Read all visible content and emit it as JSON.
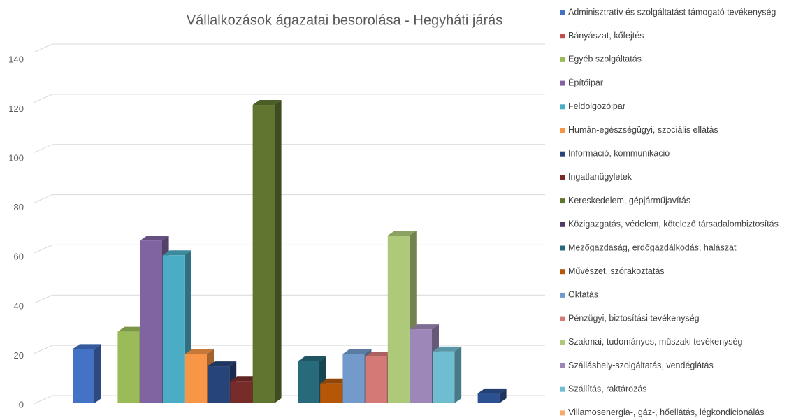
{
  "chart_data": {
    "type": "bar3d",
    "title": "Vállalkozások ágazatai besorolása - Hegyháti járás",
    "categories": [
      null
    ],
    "ylim": [
      0,
      140
    ],
    "yticks": [
      0,
      20,
      40,
      60,
      80,
      100,
      120,
      140
    ],
    "grid": true,
    "legend": "right",
    "series": [
      {
        "name": "Adminisztratív és szolgáltatást támogató tevékenység",
        "color": "#4472c4",
        "values": [
          22
        ]
      },
      {
        "name": "Bányászat, kőfejtés",
        "color": "#c0504d",
        "values": [
          0
        ]
      },
      {
        "name": "Egyéb szolgáltatás",
        "color": "#9bbb59",
        "values": [
          29
        ]
      },
      {
        "name": "Építőipar",
        "color": "#8064a2",
        "values": [
          66
        ]
      },
      {
        "name": "Feldolgozóipar",
        "color": "#4bacc6",
        "values": [
          60
        ]
      },
      {
        "name": "Humán-egészségügyi, szociális ellátás",
        "color": "#f79646",
        "values": [
          20
        ]
      },
      {
        "name": "Információ, kommunikáció",
        "color": "#264478",
        "values": [
          15
        ]
      },
      {
        "name": "Ingatlanügyletek",
        "color": "#772c2a",
        "values": [
          9
        ]
      },
      {
        "name": "Kereskedelem, gépjárműjavítás",
        "color": "#5f7530",
        "values": [
          121
        ]
      },
      {
        "name": "Közigazgatás, védelem, kötelező társadalombiztosítás",
        "color": "#4d3b62",
        "values": [
          0
        ]
      },
      {
        "name": "Mezőgazdaság, erdőgazdálkodás, halászat",
        "color": "#276a7c",
        "values": [
          17
        ]
      },
      {
        "name": "Művészet, szórakoztatás",
        "color": "#b65708",
        "values": [
          8
        ]
      },
      {
        "name": "Oktatás",
        "color": "#729aca",
        "values": [
          20
        ]
      },
      {
        "name": "Pénzügyi, biztosítási tevékenység",
        "color": "#d57977",
        "values": [
          19
        ]
      },
      {
        "name": "Szakmai, tudományos, műszaki tevékenység",
        "color": "#afc97a",
        "values": [
          68
        ]
      },
      {
        "name": "Szálláshely-szolgáltatás, vendéglátás",
        "color": "#9d87b8",
        "values": [
          30
        ]
      },
      {
        "name": "Szállítás, raktározás",
        "color": "#6fbdd1",
        "values": [
          21
        ]
      },
      {
        "name": "Villamosenergia-, gáz-, hőellátás, légkondicionálás",
        "color": "#f9ab6b",
        "values": [
          0
        ]
      },
      {
        "name": null,
        "color": "#2c5190",
        "values": [
          4
        ]
      }
    ]
  }
}
